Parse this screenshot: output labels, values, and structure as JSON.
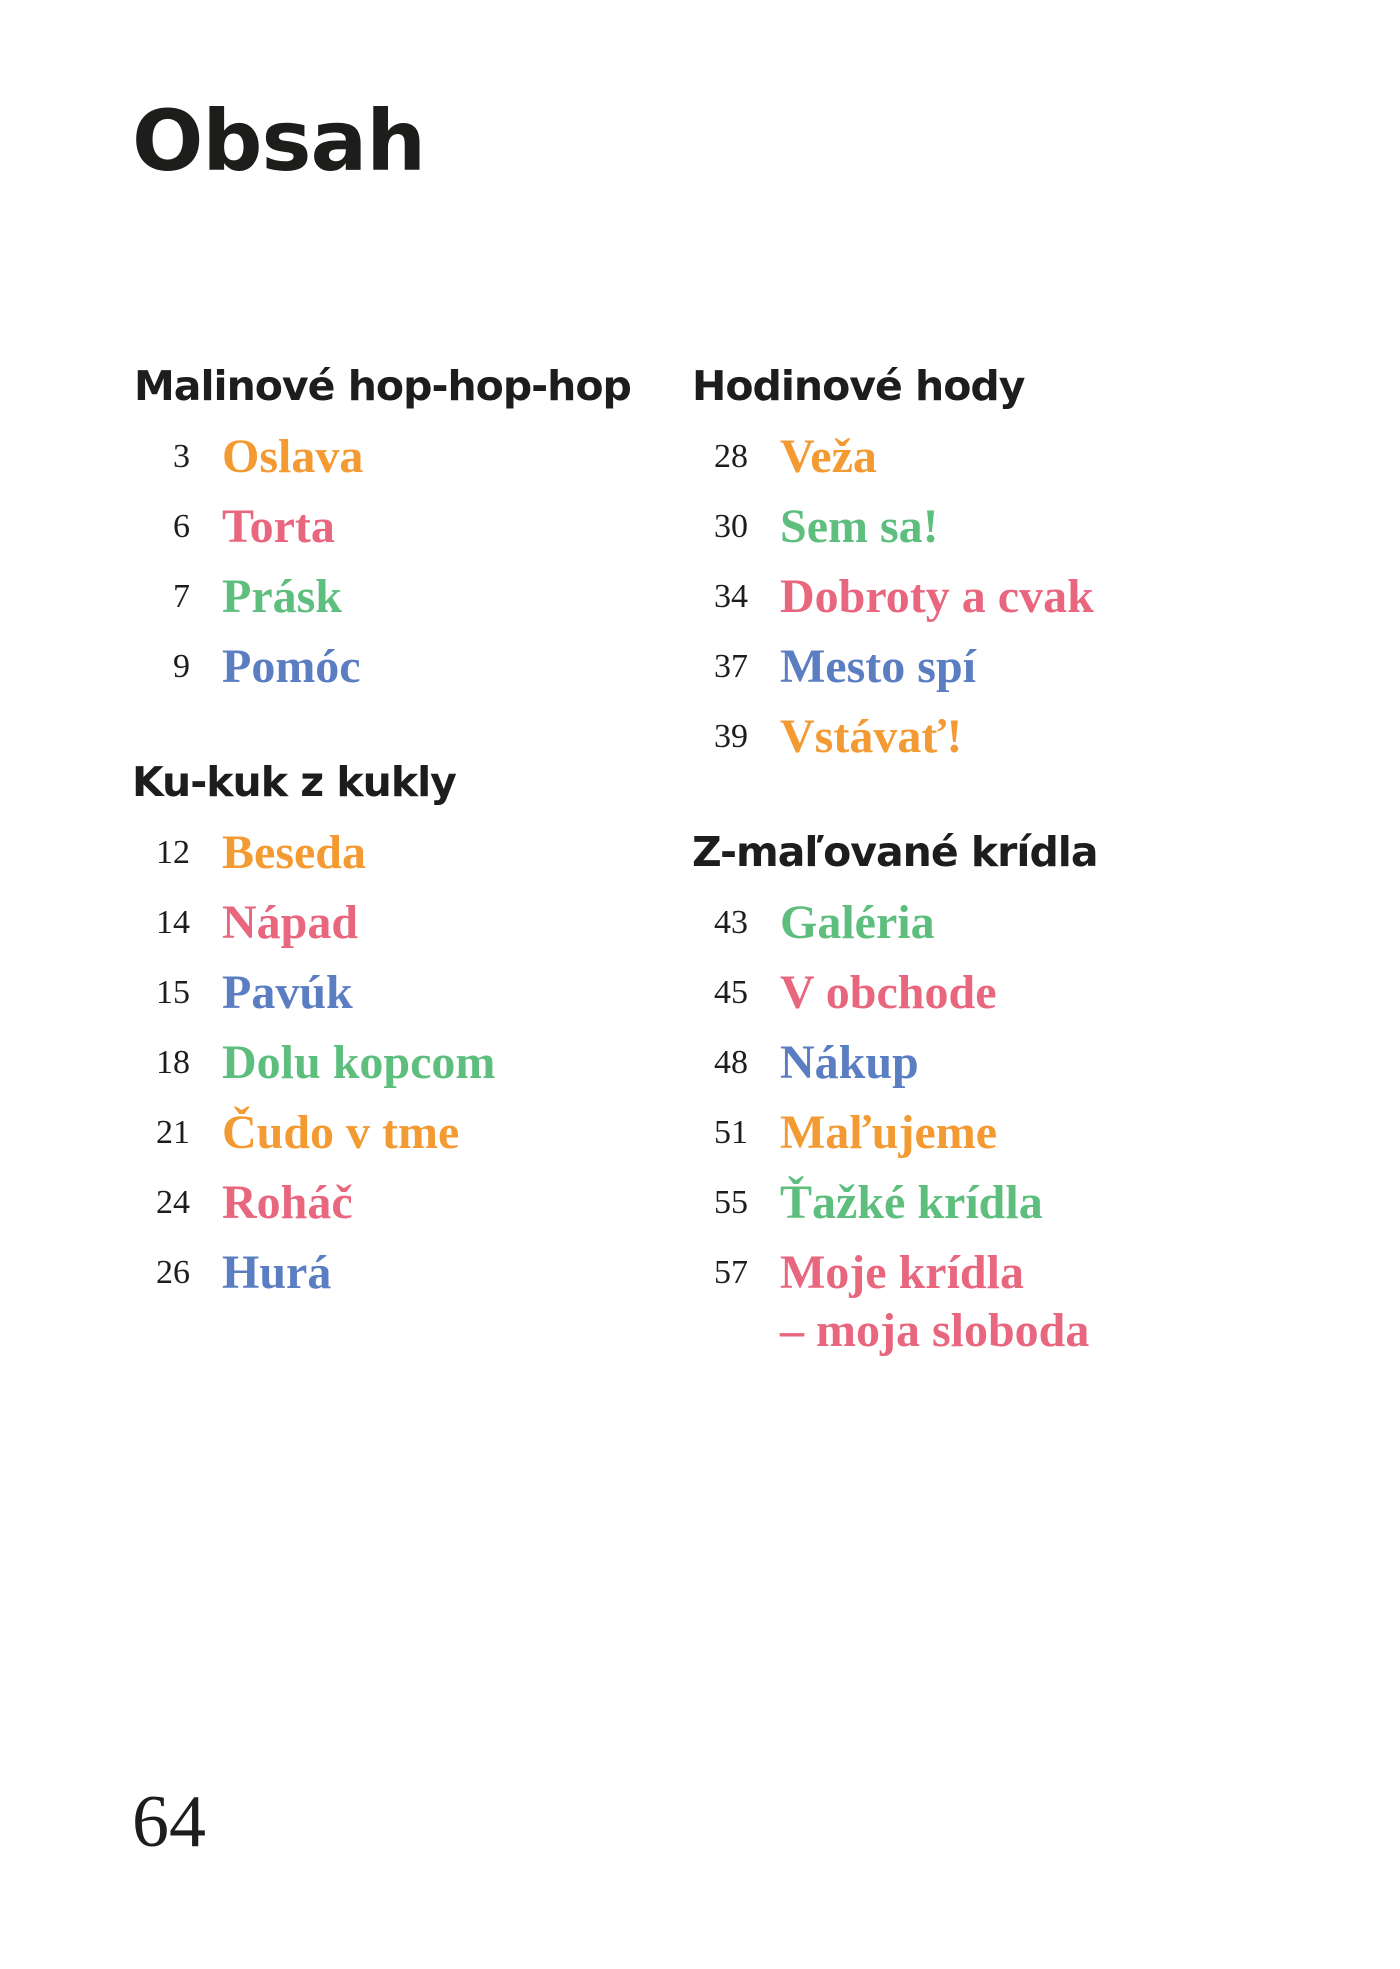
{
  "title": "Obsah",
  "colors": {
    "orange": "#F39A33",
    "pink": "#E8667E",
    "green": "#5DBE7E",
    "blue": "#5B7EC2"
  },
  "sections": [
    {
      "heading": "Malinové hop-hop-hop",
      "items": [
        {
          "page": "3",
          "title": "Oslava",
          "color": "#F39A33"
        },
        {
          "page": "6",
          "title": "Torta",
          "color": "#E8667E"
        },
        {
          "page": "7",
          "title": "Prásk",
          "color": "#5DBE7E"
        },
        {
          "page": "9",
          "title": "Pomóc",
          "color": "#5B7EC2"
        }
      ]
    },
    {
      "heading": "Ku-kuk z kukly",
      "items": [
        {
          "page": "12",
          "title": "Beseda",
          "color": "#F39A33"
        },
        {
          "page": "14",
          "title": "Nápad",
          "color": "#E8667E"
        },
        {
          "page": "15",
          "title": "Pavúk",
          "color": "#5B7EC2"
        },
        {
          "page": "18",
          "title": "Dolu kopcom",
          "color": "#5DBE7E"
        },
        {
          "page": "21",
          "title": "Čudo v tme",
          "color": "#F39A33"
        },
        {
          "page": "24",
          "title": "Roháč",
          "color": "#E8667E"
        },
        {
          "page": "26",
          "title": "Hurá",
          "color": "#5B7EC2"
        }
      ]
    },
    {
      "heading": "Hodinové hody",
      "items": [
        {
          "page": "28",
          "title": "Veža",
          "color": "#F39A33"
        },
        {
          "page": "30",
          "title": "Sem sa!",
          "color": "#5DBE7E"
        },
        {
          "page": "34",
          "title": "Dobroty a cvak",
          "color": "#E8667E"
        },
        {
          "page": "37",
          "title": "Mesto spí",
          "color": "#5B7EC2"
        },
        {
          "page": "39",
          "title": "Vstávať!",
          "color": "#F39A33"
        }
      ]
    },
    {
      "heading": "Z-maľované krídla",
      "items": [
        {
          "page": "43",
          "title": "Galéria",
          "color": "#5DBE7E"
        },
        {
          "page": "45",
          "title": "V obchode",
          "color": "#E8667E"
        },
        {
          "page": "48",
          "title": "Nákup",
          "color": "#5B7EC2"
        },
        {
          "page": "51",
          "title": "Maľujeme",
          "color": "#F39A33"
        },
        {
          "page": "55",
          "title": "Ťažké krídla",
          "color": "#5DBE7E"
        },
        {
          "page": "57",
          "title": "Moje krídla",
          "continuation": "– moja sloboda",
          "color": "#E8667E"
        }
      ]
    }
  ],
  "page_number": "64"
}
